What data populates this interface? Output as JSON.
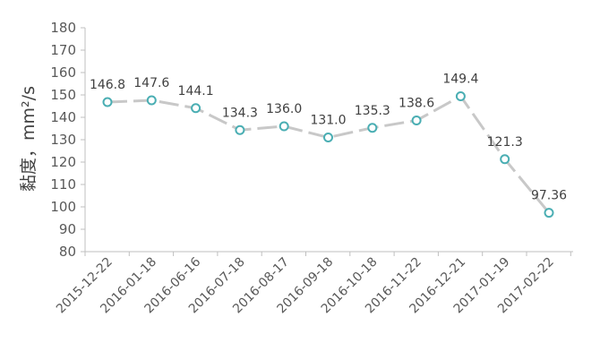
{
  "chart_data": {
    "type": "line",
    "title": "",
    "xlabel": "",
    "ylabel": "黏度，mm²/s",
    "ylim": [
      80,
      180
    ],
    "yticks": [
      80,
      90,
      100,
      110,
      120,
      130,
      140,
      150,
      160,
      170,
      180
    ],
    "categories": [
      "2015-12-22",
      "2016-01-18",
      "2016-06-16",
      "2016-07-18",
      "2016-08-17",
      "2016-09-18",
      "2016-10-18",
      "2016-11-22",
      "2016-12-21",
      "2017-01-19",
      "2017-02-22"
    ],
    "series": [
      {
        "values": [
          146.8,
          147.6,
          144.1,
          134.3,
          136.0,
          131.0,
          135.3,
          138.6,
          149.4,
          121.3,
          97.36
        ],
        "labels": [
          "146.8",
          "147.6",
          "144.1",
          "134.3",
          "136.0",
          "131.0",
          "135.3",
          "138.6",
          "149.4",
          "121.3",
          "97.36"
        ]
      }
    ],
    "grid": false,
    "legend": "none",
    "colors": {
      "line": "#c8c8c8",
      "marker": "#4aaeb3",
      "axis": "#bfbfbf"
    }
  }
}
